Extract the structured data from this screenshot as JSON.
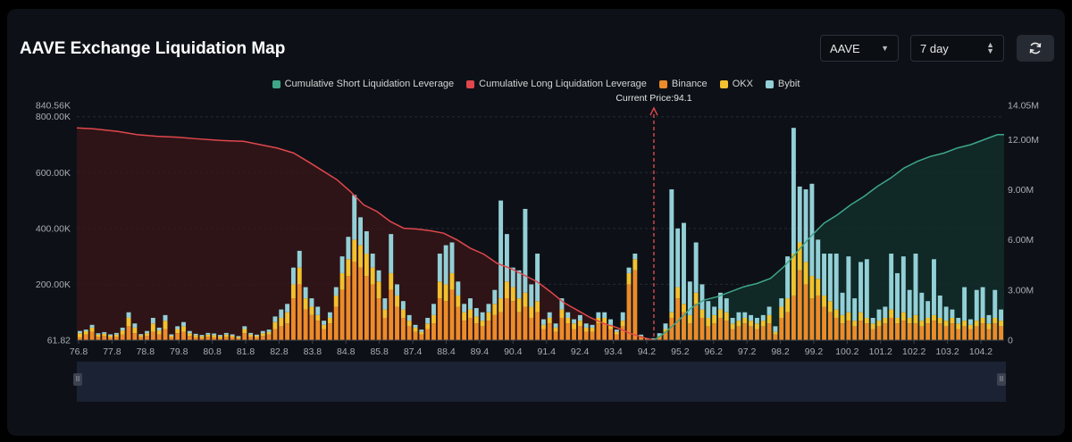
{
  "header": {
    "title": "AAVE Exchange Liquidation Map",
    "coin_select": "AAVE",
    "range_select": "7 day"
  },
  "colors": {
    "short": "#3fa68a",
    "long": "#e0474c",
    "binance": "#ec8b2a",
    "okx": "#f2c12e",
    "bybit": "#93cfd6"
  },
  "chart_data": {
    "type": "bar",
    "title": "AAVE Exchange Liquidation Map",
    "legend": [
      "Cumulative Short Liquidation Leverage",
      "Cumulative Long Liquidation Leverage",
      "Binance",
      "OKX",
      "Bybit"
    ],
    "legend_position": "top-center",
    "current_price_label": "Current Price:94.1",
    "current_price": 94.1,
    "x_tick_labels": [
      "76.8",
      "77.8",
      "78.8",
      "79.8",
      "80.8",
      "81.8",
      "82.8",
      "83.8",
      "84.8",
      "85.8",
      "87.4",
      "88.4",
      "89.4",
      "90.4",
      "91.4",
      "92.4",
      "93.4",
      "94.2",
      "95.2",
      "96.2",
      "97.2",
      "98.2",
      "99.2",
      "100.2",
      "101.2",
      "102.2",
      "103.2",
      "104.2"
    ],
    "y_left_ticks": [
      "840.56K",
      "800.00K",
      "600.00K",
      "400.00K",
      "200.00K",
      "61.82"
    ],
    "y_left_range": [
      61.82,
      840560
    ],
    "y_right_ticks": [
      "14.05M",
      "12.00M",
      "9.00M",
      "6.00M",
      "3.00M",
      "0"
    ],
    "y_right_range": [
      0,
      14050000
    ],
    "bars_x_range": [
      76.8,
      104.6
    ],
    "bars": [
      [
        10000,
        15000,
        8000
      ],
      [
        20000,
        12000,
        6000
      ],
      [
        30000,
        15000,
        10000
      ],
      [
        12000,
        8000,
        5000
      ],
      [
        15000,
        8000,
        6000
      ],
      [
        10000,
        6000,
        5000
      ],
      [
        12000,
        8000,
        6000
      ],
      [
        20000,
        15000,
        10000
      ],
      [
        50000,
        30000,
        20000
      ],
      [
        25000,
        20000,
        15000
      ],
      [
        12000,
        6000,
        4000
      ],
      [
        15000,
        10000,
        8000
      ],
      [
        30000,
        30000,
        20000
      ],
      [
        20000,
        15000,
        10000
      ],
      [
        40000,
        30000,
        20000
      ],
      [
        10000,
        6000,
        5000
      ],
      [
        25000,
        15000,
        10000
      ],
      [
        30000,
        20000,
        15000
      ],
      [
        15000,
        10000,
        8000
      ],
      [
        10000,
        8000,
        5000
      ],
      [
        8000,
        6000,
        5000
      ],
      [
        12000,
        8000,
        6000
      ],
      [
        10000,
        8000,
        6000
      ],
      [
        8000,
        6000,
        5000
      ],
      [
        12000,
        8000,
        6000
      ],
      [
        10000,
        6000,
        5000
      ],
      [
        6000,
        5000,
        4000
      ],
      [
        25000,
        15000,
        10000
      ],
      [
        12000,
        8000,
        6000
      ],
      [
        10000,
        6000,
        4000
      ],
      [
        15000,
        10000,
        8000
      ],
      [
        20000,
        10000,
        8000
      ],
      [
        40000,
        25000,
        20000
      ],
      [
        50000,
        30000,
        30000
      ],
      [
        60000,
        40000,
        30000
      ],
      [
        150000,
        50000,
        60000
      ],
      [
        200000,
        60000,
        60000
      ],
      [
        110000,
        40000,
        40000
      ],
      [
        90000,
        30000,
        30000
      ],
      [
        70000,
        20000,
        30000
      ],
      [
        40000,
        15000,
        15000
      ],
      [
        60000,
        20000,
        20000
      ],
      [
        120000,
        40000,
        30000
      ],
      [
        180000,
        60000,
        60000
      ],
      [
        230000,
        60000,
        80000
      ],
      [
        280000,
        80000,
        160000
      ],
      [
        260000,
        80000,
        100000
      ],
      [
        230000,
        80000,
        80000
      ],
      [
        200000,
        60000,
        50000
      ],
      [
        150000,
        60000,
        40000
      ],
      [
        80000,
        30000,
        40000
      ],
      [
        180000,
        60000,
        140000
      ],
      [
        120000,
        40000,
        40000
      ],
      [
        80000,
        30000,
        30000
      ],
      [
        50000,
        20000,
        20000
      ],
      [
        30000,
        15000,
        10000
      ],
      [
        20000,
        10000,
        8000
      ],
      [
        40000,
        20000,
        20000
      ],
      [
        60000,
        30000,
        40000
      ],
      [
        150000,
        60000,
        100000
      ],
      [
        140000,
        60000,
        140000
      ],
      [
        180000,
        60000,
        110000
      ],
      [
        120000,
        40000,
        50000
      ],
      [
        70000,
        30000,
        30000
      ],
      [
        80000,
        30000,
        40000
      ],
      [
        60000,
        25000,
        30000
      ],
      [
        50000,
        20000,
        30000
      ],
      [
        70000,
        30000,
        30000
      ],
      [
        90000,
        40000,
        50000
      ],
      [
        100000,
        50000,
        350000
      ],
      [
        150000,
        60000,
        170000
      ],
      [
        140000,
        50000,
        70000
      ],
      [
        100000,
        50000,
        100000
      ],
      [
        120000,
        50000,
        300000
      ],
      [
        80000,
        40000,
        80000
      ],
      [
        100000,
        40000,
        170000
      ],
      [
        40000,
        15000,
        20000
      ],
      [
        60000,
        20000,
        20000
      ],
      [
        30000,
        15000,
        15000
      ],
      [
        80000,
        30000,
        40000
      ],
      [
        60000,
        20000,
        20000
      ],
      [
        40000,
        20000,
        15000
      ],
      [
        50000,
        20000,
        20000
      ],
      [
        30000,
        15000,
        15000
      ],
      [
        30000,
        15000,
        10000
      ],
      [
        60000,
        20000,
        20000
      ],
      [
        60000,
        20000,
        20000
      ],
      [
        40000,
        15000,
        20000
      ],
      [
        20000,
        10000,
        8000
      ],
      [
        50000,
        20000,
        30000
      ],
      [
        200000,
        40000,
        20000
      ],
      [
        250000,
        40000,
        20000
      ],
      [
        10000,
        5000,
        5000
      ],
      [
        3000,
        2000,
        2000
      ],
      [
        3000,
        2000,
        2000
      ],
      [
        10000,
        5000,
        10000
      ],
      [
        30000,
        10000,
        20000
      ],
      [
        80000,
        20000,
        440000
      ],
      [
        150000,
        40000,
        210000
      ],
      [
        100000,
        30000,
        290000
      ],
      [
        60000,
        30000,
        120000
      ],
      [
        130000,
        40000,
        180000
      ],
      [
        80000,
        30000,
        90000
      ],
      [
        50000,
        30000,
        60000
      ],
      [
        60000,
        30000,
        30000
      ],
      [
        80000,
        30000,
        60000
      ],
      [
        70000,
        30000,
        50000
      ],
      [
        40000,
        20000,
        20000
      ],
      [
        50000,
        20000,
        30000
      ],
      [
        60000,
        20000,
        20000
      ],
      [
        50000,
        20000,
        20000
      ],
      [
        40000,
        20000,
        20000
      ],
      [
        50000,
        20000,
        20000
      ],
      [
        60000,
        30000,
        30000
      ],
      [
        20000,
        10000,
        20000
      ],
      [
        80000,
        40000,
        30000
      ],
      [
        100000,
        50000,
        150000
      ],
      [
        160000,
        150000,
        450000
      ],
      [
        250000,
        100000,
        200000
      ],
      [
        200000,
        80000,
        260000
      ],
      [
        150000,
        80000,
        330000
      ],
      [
        160000,
        60000,
        140000
      ],
      [
        120000,
        40000,
        150000
      ],
      [
        100000,
        40000,
        170000
      ],
      [
        80000,
        30000,
        200000
      ],
      [
        60000,
        30000,
        80000
      ],
      [
        70000,
        30000,
        200000
      ],
      [
        50000,
        20000,
        80000
      ],
      [
        70000,
        30000,
        180000
      ],
      [
        60000,
        20000,
        210000
      ],
      [
        40000,
        20000,
        20000
      ],
      [
        50000,
        20000,
        40000
      ],
      [
        60000,
        20000,
        40000
      ],
      [
        80000,
        30000,
        200000
      ],
      [
        60000,
        20000,
        160000
      ],
      [
        70000,
        30000,
        200000
      ],
      [
        60000,
        20000,
        100000
      ],
      [
        60000,
        30000,
        220000
      ],
      [
        50000,
        20000,
        100000
      ],
      [
        60000,
        20000,
        60000
      ],
      [
        70000,
        20000,
        200000
      ],
      [
        60000,
        20000,
        80000
      ],
      [
        50000,
        20000,
        50000
      ],
      [
        60000,
        20000,
        30000
      ],
      [
        40000,
        20000,
        20000
      ],
      [
        50000,
        20000,
        120000
      ],
      [
        40000,
        15000,
        20000
      ],
      [
        50000,
        20000,
        110000
      ],
      [
        60000,
        20000,
        110000
      ],
      [
        40000,
        20000,
        30000
      ],
      [
        60000,
        20000,
        100000
      ],
      [
        50000,
        20000,
        40000
      ]
    ],
    "long_cumulative": {
      "x": [
        76.8,
        77.3,
        78.0,
        78.6,
        79.2,
        79.8,
        80.4,
        81.1,
        81.8,
        82.3,
        82.8,
        83.3,
        83.8,
        84.2,
        84.6,
        85.0,
        85.4,
        85.8,
        86.2,
        86.6,
        87.0,
        87.4,
        87.8,
        88.2,
        88.6,
        89.0,
        89.4,
        89.8,
        90.2,
        90.6,
        91.0,
        91.4,
        91.8,
        92.2,
        92.6,
        93.0,
        93.4,
        93.8,
        94.1
      ],
      "y": [
        12700000,
        12650000,
        12500000,
        12300000,
        12200000,
        12150000,
        12050000,
        11950000,
        11900000,
        11700000,
        11500000,
        11200000,
        10600000,
        10100000,
        9600000,
        8900000,
        8100000,
        7700000,
        7100000,
        6700000,
        6650000,
        6550000,
        6400000,
        6000000,
        5500000,
        5150000,
        4600000,
        4300000,
        3900000,
        3500000,
        2900000,
        2250000,
        1800000,
        1350000,
        1000000,
        750000,
        400000,
        150000,
        0
      ]
    },
    "short_cumulative": {
      "x": [
        94.1,
        94.4,
        94.8,
        95.2,
        95.6,
        96.0,
        96.4,
        96.8,
        97.2,
        97.6,
        98.0,
        98.4,
        98.8,
        99.2,
        99.6,
        100.0,
        100.4,
        100.8,
        101.2,
        101.6,
        102.0,
        102.4,
        102.8,
        103.2,
        103.6,
        104.0,
        104.4,
        104.6
      ],
      "y": [
        0,
        400000,
        1100000,
        1900000,
        2400000,
        2600000,
        2900000,
        3200000,
        3400000,
        3700000,
        4400000,
        5300000,
        6200000,
        7000000,
        7500000,
        8100000,
        8600000,
        9200000,
        9700000,
        10300000,
        10700000,
        11000000,
        11200000,
        11500000,
        11700000,
        12000000,
        12300000,
        12300000
      ]
    }
  }
}
